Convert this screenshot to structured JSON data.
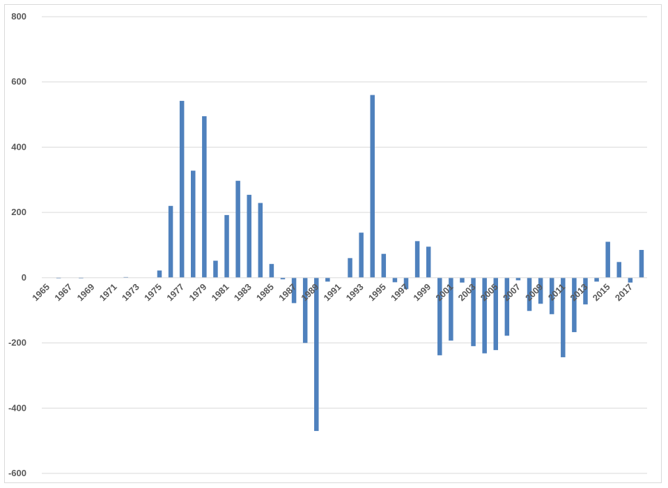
{
  "chart_data": {
    "type": "bar",
    "title": "",
    "xlabel": "",
    "ylabel": "",
    "ylim": [
      -600,
      800
    ],
    "yticks": [
      -600,
      -400,
      -200,
      0,
      200,
      400,
      600,
      800
    ],
    "grid": true,
    "legend": "none",
    "bar_color": "#4f81bd",
    "categories": [
      "1965",
      "1966",
      "1967",
      "1968",
      "1969",
      "1970",
      "1971",
      "1972",
      "1973",
      "1974",
      "1975",
      "1976",
      "1977",
      "1978",
      "1979",
      "1980",
      "1981",
      "1982",
      "1983",
      "1984",
      "1985",
      "1986",
      "1987",
      "1988",
      "1989",
      "1990",
      "1991",
      "1992",
      "1993",
      "1994",
      "1995",
      "1996",
      "1997",
      "1998",
      "1999",
      "2000",
      "2001",
      "2002",
      "2003",
      "2004",
      "2005",
      "2006",
      "2007",
      "2008",
      "2009",
      "2010",
      "2011",
      "2012",
      "2013",
      "2014",
      "2015",
      "2016",
      "2017",
      "2018"
    ],
    "tick_labels": [
      "1965",
      "",
      "1967",
      "",
      "1969",
      "",
      "1971",
      "",
      "1973",
      "",
      "1975",
      "",
      "1977",
      "",
      "1979",
      "",
      "1981",
      "",
      "1983",
      "",
      "1985",
      "",
      "1987",
      "",
      "1989",
      "",
      "1991",
      "",
      "1993",
      "",
      "1995",
      "",
      "1997",
      "",
      "1999",
      "",
      "2001",
      "",
      "2003",
      "",
      "2005",
      "",
      "2007",
      "",
      "2009",
      "",
      "2011",
      "",
      "2013",
      "",
      "2015",
      "",
      "2017",
      ""
    ],
    "values": [
      0,
      -2,
      0,
      -2,
      0,
      0,
      0,
      2,
      0,
      0,
      22,
      220,
      542,
      328,
      495,
      52,
      192,
      297,
      254,
      229,
      42,
      -5,
      -78,
      -200,
      -470,
      -12,
      0,
      60,
      138,
      560,
      73,
      -14,
      -35,
      112,
      95,
      -238,
      -193,
      -15,
      -210,
      -232,
      -222,
      -178,
      -8,
      -102,
      -80,
      -112,
      -244,
      -167,
      -82,
      -12,
      110,
      48,
      -15,
      85
    ]
  }
}
